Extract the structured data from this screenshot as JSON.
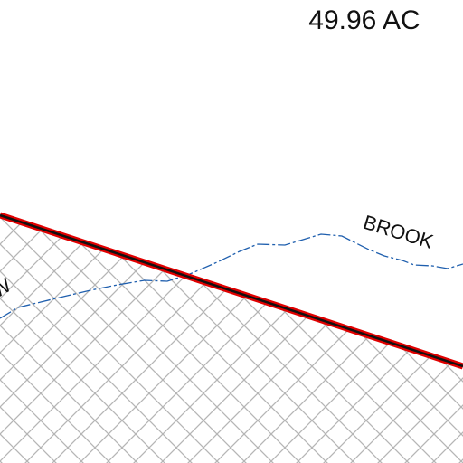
{
  "labels": {
    "acreage": "49.96 AC",
    "brook": "BROOK",
    "partial": "W"
  }
}
